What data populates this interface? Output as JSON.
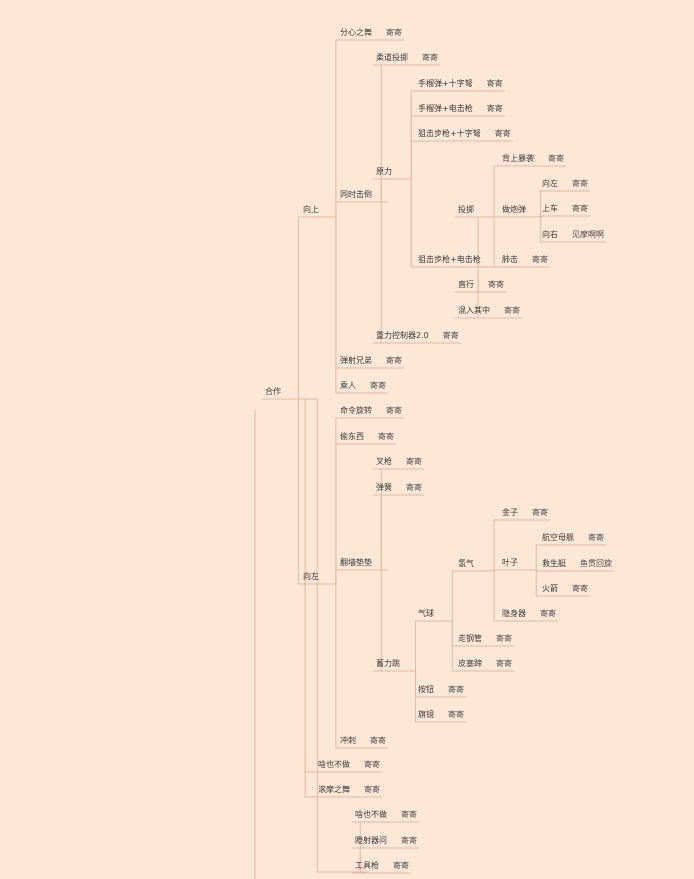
{
  "colors": {
    "background": "#fde8d8",
    "line": "#e4b8a0",
    "text": "#3a3a3a"
  },
  "tree": {
    "label": "合作",
    "value": "",
    "children": [
      {
        "label": "向上",
        "value": "",
        "children": [
          {
            "label": "分心之舞",
            "value": "寄寄"
          },
          {
            "label": "同时击倒",
            "value": "",
            "children": [
              {
                "label": "柔道投掷",
                "value": "寄寄"
              },
              {
                "label": "原力",
                "value": "",
                "children": [
                  {
                    "label": "手榴弹+十字弩",
                    "value": "寄寄"
                  },
                  {
                    "label": "手榴弹+电击枪",
                    "value": "寄寄"
                  },
                  {
                    "label": "狙击步枪+十字弩",
                    "value": "寄寄"
                  },
                  {
                    "label": "狙击步枪+电击枪",
                    "value": "",
                    "children": [
                      {
                        "label": "投掷",
                        "value": "",
                        "children": [
                          {
                            "label": "背上暴袭",
                            "value": "寄寄"
                          },
                          {
                            "label": "做炮弹",
                            "value": "",
                            "children": [
                              {
                                "label": "向左",
                                "value": "寄寄"
                              },
                              {
                                "label": "上车",
                                "value": "寄寄"
                              },
                              {
                                "label": "向右",
                                "value": "见摩啊啊"
                              }
                            ]
                          },
                          {
                            "label": "肺击",
                            "value": "寄寄"
                          }
                        ]
                      },
                      {
                        "label": "直行",
                        "value": "寄寄"
                      },
                      {
                        "label": "混入其中",
                        "value": "寄寄"
                      }
                    ]
                  }
                ]
              },
              {
                "label": "重力控制器2.0",
                "value": "寄寄"
              }
            ]
          },
          {
            "label": "弹射兄弟",
            "value": "寄寄"
          },
          {
            "label": "乘人",
            "value": "寄寄"
          }
        ]
      },
      {
        "label": "向左",
        "value": "",
        "children": [
          {
            "label": "命令旋转",
            "value": "寄寄"
          },
          {
            "label": "偷东西",
            "value": "寄寄"
          },
          {
            "label": "翻墙垫垫",
            "value": "",
            "children": [
              {
                "label": "叉枪",
                "value": "寄寄"
              },
              {
                "label": "弹簧",
                "value": "寄寄"
              },
              {
                "label": "蓄力跳",
                "value": "",
                "children": [
                  {
                    "label": "气球",
                    "value": "",
                    "children": [
                      {
                        "label": "氢气",
                        "value": "",
                        "children": [
                          {
                            "label": "金子",
                            "value": "寄寄"
                          },
                          {
                            "label": "叶子",
                            "value": "",
                            "children": [
                              {
                                "label": "航空母舰",
                                "value": "寄寄"
                              },
                              {
                                "label": "救生艇",
                                "value": "鱼贯回旋"
                              },
                              {
                                "label": "火箭",
                                "value": "寄寄"
                              }
                            ]
                          },
                          {
                            "label": "隐身器",
                            "value": "寄寄"
                          }
                        ]
                      },
                      {
                        "label": "走钢管",
                        "value": "寄寄"
                      },
                      {
                        "label": "皮塞蹄",
                        "value": "寄寄"
                      }
                    ]
                  },
                  {
                    "label": "按钮",
                    "value": "寄寄"
                  },
                  {
                    "label": "旗镜",
                    "value": "寄寄"
                  }
                ]
              }
            ]
          },
          {
            "label": "冲刺",
            "value": "寄寄"
          }
        ]
      },
      {
        "label": "啥也不做",
        "value": "寄寄"
      },
      {
        "label": "滚摩之舞",
        "value": "寄寄"
      },
      {
        "label": "",
        "value": "",
        "children": [
          {
            "label": "啥也不做",
            "value": "寄寄"
          },
          {
            "label": "瞪射器问",
            "value": "寄寄"
          },
          {
            "label": "工具枪",
            "value": "寄寄"
          }
        ]
      }
    ]
  }
}
